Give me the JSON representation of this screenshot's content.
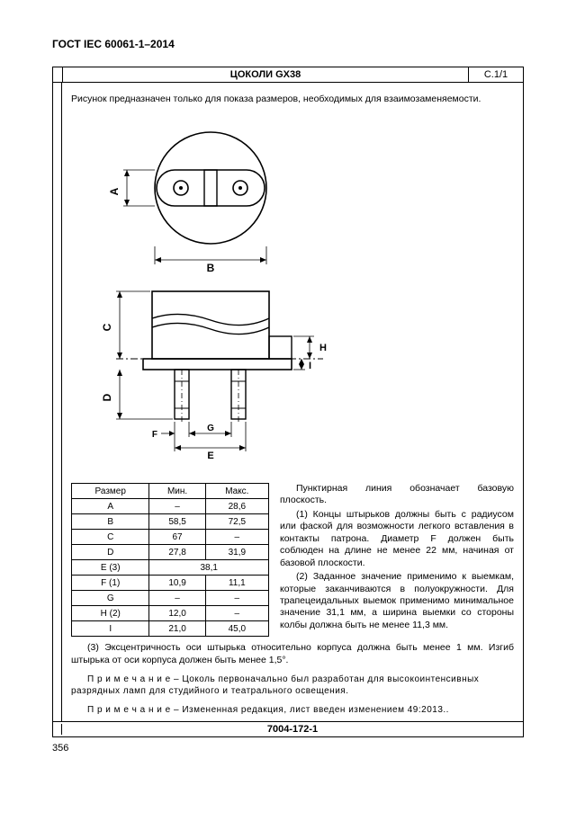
{
  "doc_header": "ГОСТ IEC 60061-1–2014",
  "title": "ЦОКОЛИ GX38",
  "sheet_ref": "С.1/1",
  "intro": "Рисунок предназначен только для показа размеров, необходимых для взаимозаменяемости.",
  "table": {
    "headers": [
      "Размер",
      "Мин.",
      "Макс."
    ],
    "rows": [
      [
        "A",
        "–",
        "28,6"
      ],
      [
        "B",
        "58,5",
        "72,5"
      ],
      [
        "C",
        "67",
        "–"
      ],
      [
        "D",
        "27,8",
        "31,9"
      ],
      [
        "E (3)",
        "38,1",
        ""
      ],
      [
        "F (1)",
        "10,9",
        "11,1"
      ],
      [
        "G",
        "–",
        "–"
      ],
      [
        "H (2)",
        "12,0",
        "–"
      ],
      [
        "I",
        "21,0",
        "45,0"
      ]
    ],
    "merged_rows": [
      4
    ]
  },
  "side_notes": [
    "Пунктирная линия обозначает базовую плоскость.",
    "(1) Концы штырьков должны быть с радиусом или фаской для возможности легкого вставления в контакты патрона. Диаметр F должен быть соблюден на длине не менее 22 мм, начиная от базовой плоскости.",
    "(2) Заданное значение применимо к выемкам, которые заканчиваются в полуокружности. Для трапецеидальных выемок применимо минимальное значение 31,1 мм, а ширина выемки со стороны колбы должна быть не менее 11,3 мм."
  ],
  "full_notes": [
    "(3) Эксцентричность оси штырька относительно корпуса должна быть менее 1 мм. Изгиб штырька от оси корпуса должен быть менее 1,5°."
  ],
  "primechanie": [
    "П р и м е ч а н и е  – Цоколь первоначально был разработан для высокоинтенсивных разрядных ламп для студийного и театрального освещения.",
    "П р и м е ч а н и е  – Измененная редакция, лист введен изменением 49:2013.."
  ],
  "footer_code": "7004-172-1",
  "page_number": "356",
  "diagram": {
    "labels": [
      "A",
      "B",
      "C",
      "D",
      "E",
      "F",
      "G",
      "H"
    ],
    "line_color": "#000000",
    "stroke_width": 1.4
  }
}
